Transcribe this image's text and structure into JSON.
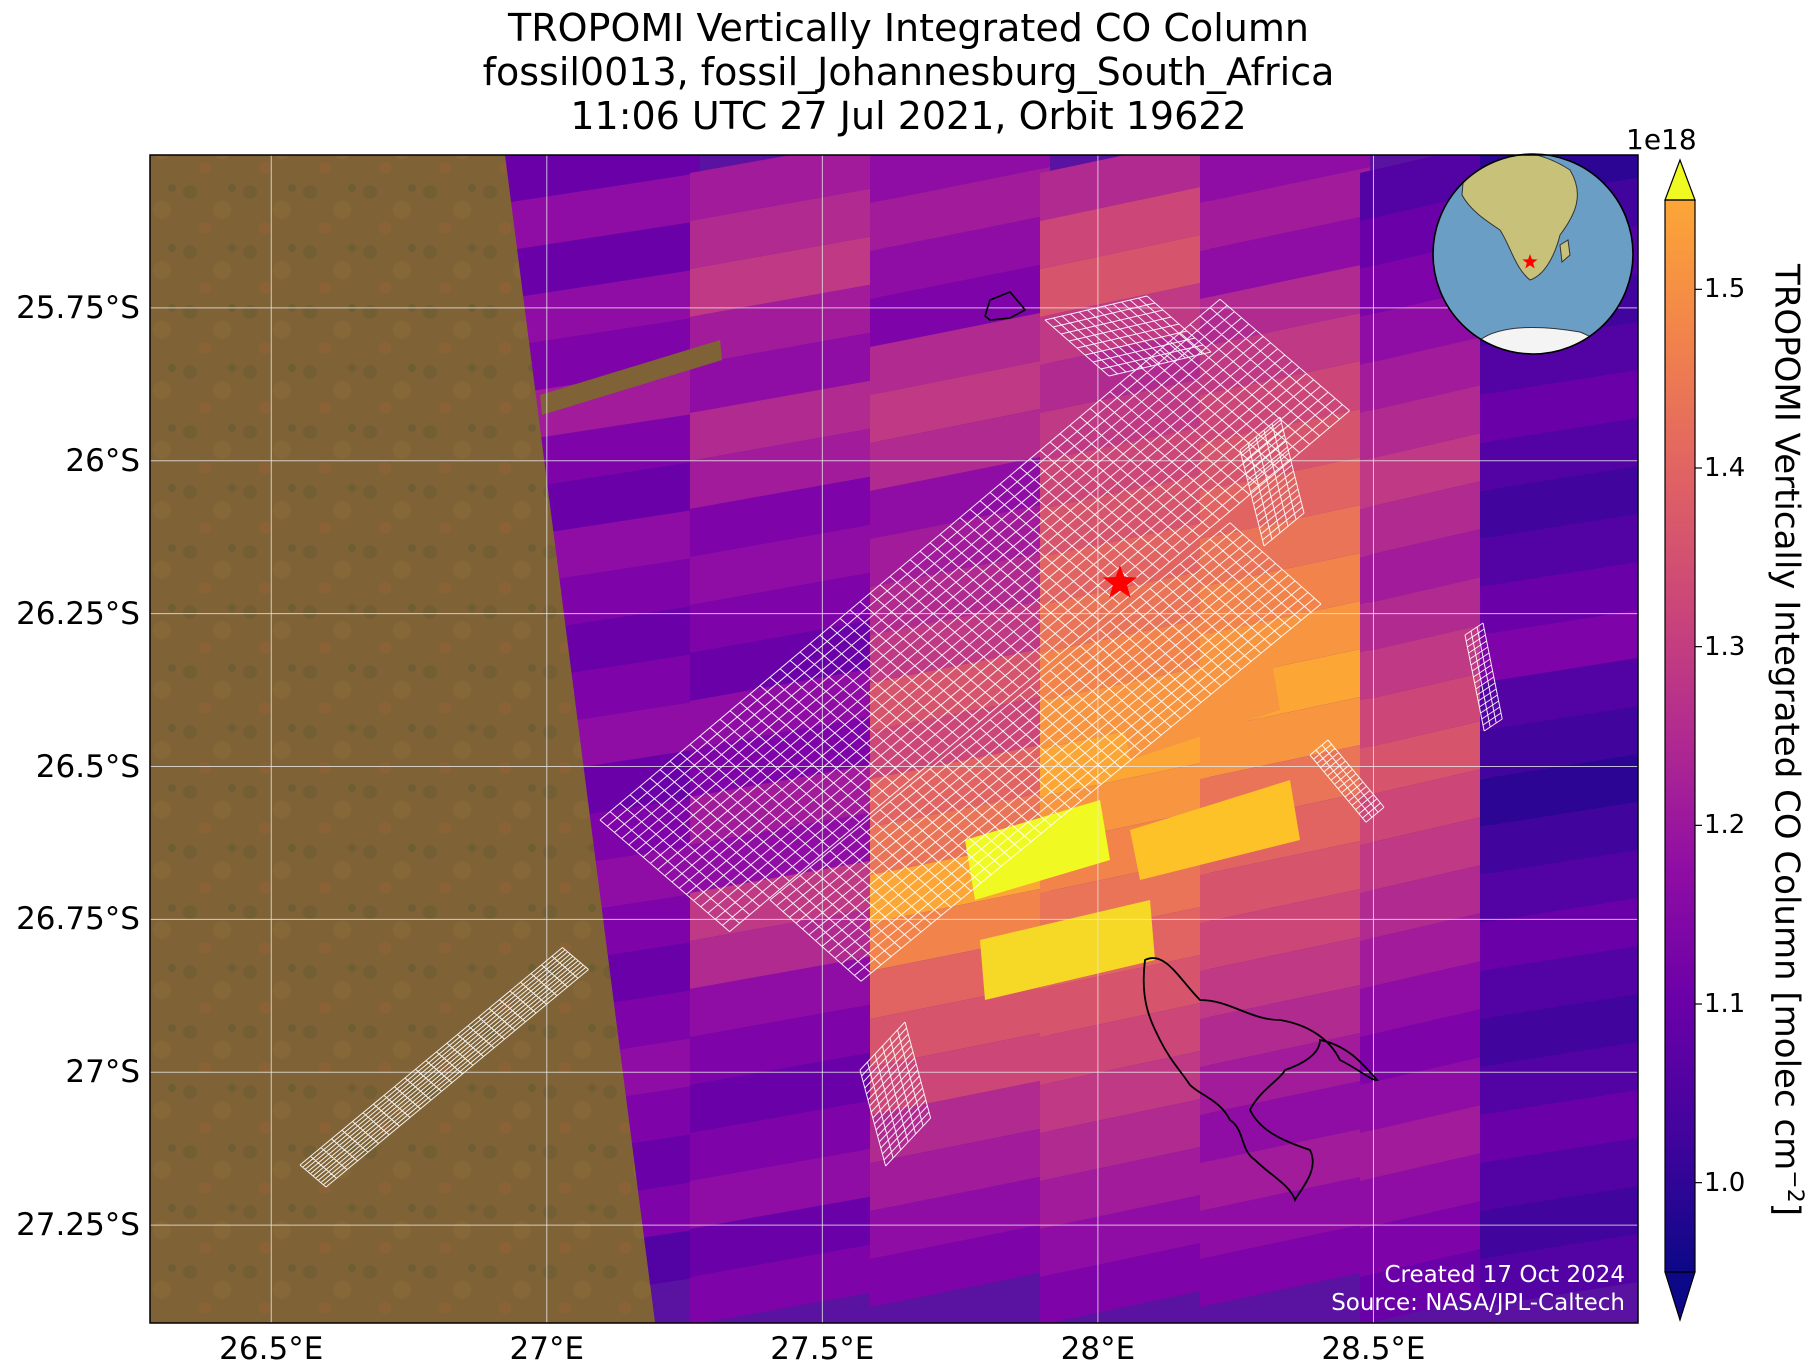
{
  "title": {
    "line1": "TROPOMI Vertically Integrated CO Column",
    "line2": "fossil0013, fossil_Johannesburg_South_Africa",
    "line3": "11:06 UTC 27 Jul 2021, Orbit 19622"
  },
  "map": {
    "lon_range": [
      26.28,
      28.98
    ],
    "lat_range": [
      -27.41,
      -25.5
    ],
    "x_ticks": [
      "26.5°E",
      "27°E",
      "27.5°E",
      "28°E",
      "28.5°E"
    ],
    "x_tick_values": [
      26.5,
      27.0,
      27.5,
      28.0,
      28.5
    ],
    "y_ticks": [
      "25.75°S",
      "26°S",
      "26.25°S",
      "26.5°S",
      "26.75°S",
      "27°S",
      "27.25°S"
    ],
    "y_tick_values": [
      -25.75,
      -26.0,
      -26.25,
      -26.5,
      -26.75,
      -27.0,
      -27.25
    ],
    "grid": true,
    "basemap": "satellite imagery",
    "target_marker": {
      "lon": 28.04,
      "lat": -26.2,
      "symbol": "red-star"
    },
    "inset_globe": {
      "center_lon": 28.0,
      "center_lat": -26.2,
      "marker": "red-star",
      "placement": "top-right"
    },
    "colors": {
      "land_base": "#7f6336",
      "grid": "#e8e8e8",
      "target_star": "#ff0000",
      "footprint_outline": "#ffffff",
      "contour": "#000000"
    }
  },
  "colorbar": {
    "label": "TROPOMI Vertically Integrated CO Column [molec cm",
    "label_exponent": "−2",
    "label_end": "]",
    "exponent": "1e18",
    "ticks": [
      "1.0",
      "1.1",
      "1.2",
      "1.3",
      "1.4",
      "1.5"
    ],
    "tick_values": [
      1.0,
      1.1,
      1.2,
      1.3,
      1.4,
      1.5
    ],
    "range": [
      0.95,
      1.55
    ],
    "extend": "both",
    "colormap": "plasma"
  },
  "credits": {
    "created": "Created 17 Oct 2024",
    "source": "Source: NASA/JPL-Caltech"
  }
}
